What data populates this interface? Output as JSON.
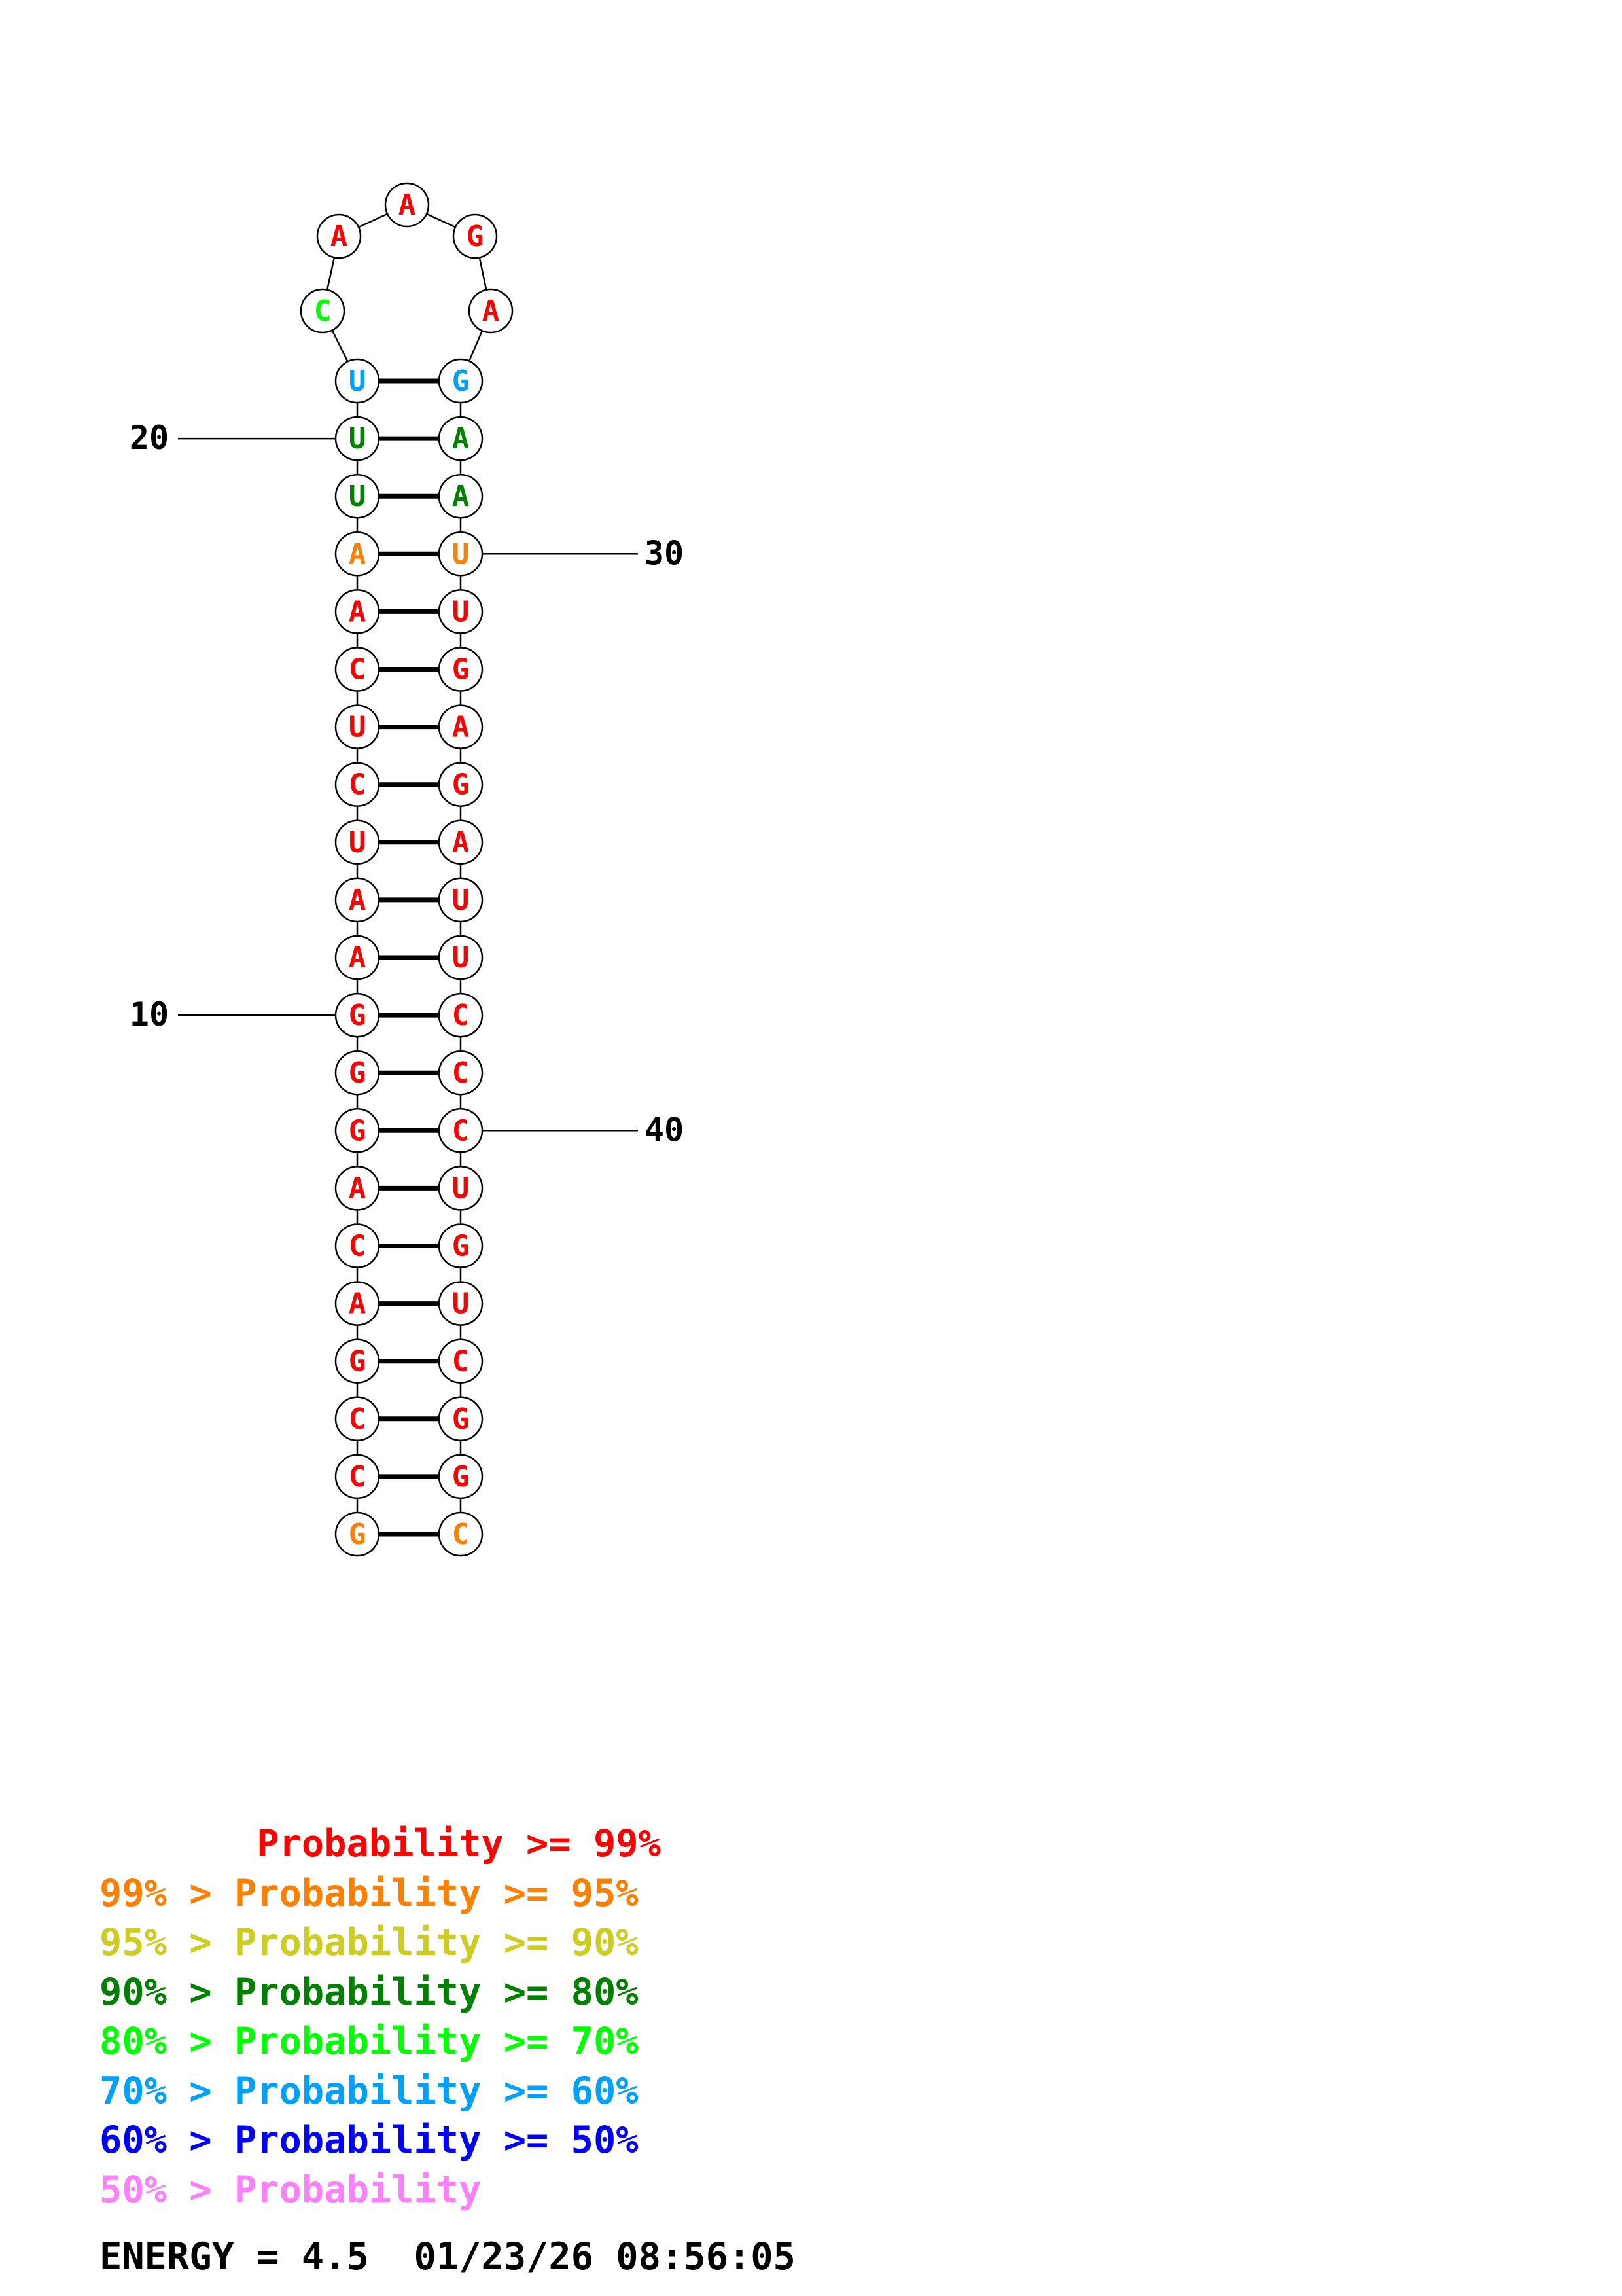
{
  "colors": {
    "p99": "#ff0000",
    "p95": "#ff8000",
    "p90": "#cccc22",
    "p80": "#008000",
    "p70": "#00ff00",
    "p60": "#00a0ff",
    "p50": "#0000ff",
    "p0": "#ff80ff"
  },
  "structure": {
    "left_strand": [
      {
        "base": "G",
        "color": "p95"
      },
      {
        "base": "C",
        "color": "p99"
      },
      {
        "base": "C",
        "color": "p99"
      },
      {
        "base": "G",
        "color": "p99"
      },
      {
        "base": "A",
        "color": "p99"
      },
      {
        "base": "C",
        "color": "p99"
      },
      {
        "base": "A",
        "color": "p99"
      },
      {
        "base": "G",
        "color": "p99"
      },
      {
        "base": "G",
        "color": "p99"
      },
      {
        "base": "G",
        "color": "p99"
      },
      {
        "base": "A",
        "color": "p99"
      },
      {
        "base": "A",
        "color": "p99"
      },
      {
        "base": "U",
        "color": "p99"
      },
      {
        "base": "C",
        "color": "p99"
      },
      {
        "base": "U",
        "color": "p99"
      },
      {
        "base": "C",
        "color": "p99"
      },
      {
        "base": "A",
        "color": "p99"
      },
      {
        "base": "A",
        "color": "p95"
      },
      {
        "base": "U",
        "color": "p80"
      },
      {
        "base": "U",
        "color": "p80"
      },
      {
        "base": "U",
        "color": "p60"
      }
    ],
    "loop": [
      {
        "base": "C",
        "color": "p70"
      },
      {
        "base": "A",
        "color": "p99"
      },
      {
        "base": "A",
        "color": "p99"
      },
      {
        "base": "G",
        "color": "p99"
      },
      {
        "base": "A",
        "color": "p99"
      }
    ],
    "right_strand": [
      {
        "base": "G",
        "color": "p60"
      },
      {
        "base": "A",
        "color": "p80"
      },
      {
        "base": "A",
        "color": "p80"
      },
      {
        "base": "U",
        "color": "p95"
      },
      {
        "base": "U",
        "color": "p99"
      },
      {
        "base": "G",
        "color": "p99"
      },
      {
        "base": "A",
        "color": "p99"
      },
      {
        "base": "G",
        "color": "p99"
      },
      {
        "base": "A",
        "color": "p99"
      },
      {
        "base": "U",
        "color": "p99"
      },
      {
        "base": "U",
        "color": "p99"
      },
      {
        "base": "C",
        "color": "p99"
      },
      {
        "base": "C",
        "color": "p99"
      },
      {
        "base": "C",
        "color": "p99"
      },
      {
        "base": "U",
        "color": "p99"
      },
      {
        "base": "G",
        "color": "p99"
      },
      {
        "base": "U",
        "color": "p99"
      },
      {
        "base": "C",
        "color": "p99"
      },
      {
        "base": "G",
        "color": "p99"
      },
      {
        "base": "G",
        "color": "p99"
      },
      {
        "base": "C",
        "color": "p95"
      }
    ],
    "tick_labels": [
      {
        "text": "10",
        "position": 10
      },
      {
        "text": "20",
        "position": 20
      },
      {
        "text": "30",
        "position": 30
      },
      {
        "text": "40",
        "position": 40
      }
    ]
  },
  "legend": [
    {
      "prefix": "       ",
      "label": "Probability >= 99%",
      "color": "p99"
    },
    {
      "prefix": "99% > ",
      "label": "Probability >= 95%",
      "color": "p95"
    },
    {
      "prefix": "95% > ",
      "label": "Probability >= 90%",
      "color": "p90"
    },
    {
      "prefix": "90% > ",
      "label": "Probability >= 80%",
      "color": "p80"
    },
    {
      "prefix": "80% > ",
      "label": "Probability >= 70%",
      "color": "p70"
    },
    {
      "prefix": "70% > ",
      "label": "Probability >= 60%",
      "color": "p60"
    },
    {
      "prefix": "60% > ",
      "label": "Probability >= 50%",
      "color": "p50"
    },
    {
      "prefix": "50% > ",
      "label": "Probability",
      "color": "p0"
    }
  ],
  "footer": {
    "energy": "ENERGY = 4.5",
    "timestamp": "01/23/26 08:56:05"
  }
}
